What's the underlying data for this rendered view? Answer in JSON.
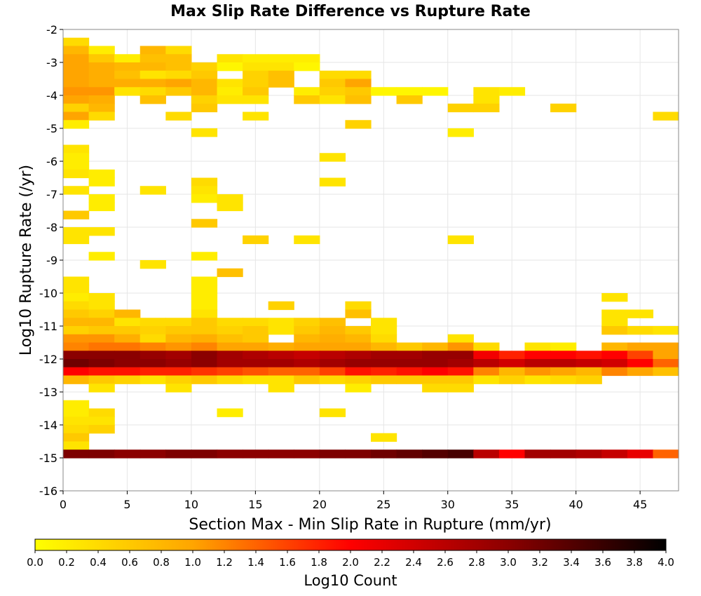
{
  "chart_data": {
    "type": "heatmap",
    "title": "Max Slip Rate Difference vs Rupture Rate",
    "xlabel": "Section Max - Min Slip Rate in Rupture (mm/yr)",
    "ylabel": "Log10 Rupture Rate (/yr)",
    "colorbar_label": "Log10 Count",
    "xlim": [
      0,
      48
    ],
    "ylim": [
      -16,
      -2
    ],
    "x_ticks": [
      0,
      5,
      10,
      15,
      20,
      25,
      30,
      35,
      40,
      45
    ],
    "y_ticks": [
      -2,
      -3,
      -4,
      -5,
      -6,
      -7,
      -8,
      -9,
      -10,
      -11,
      -12,
      -13,
      -14,
      -15,
      -16
    ],
    "colorbar_range": [
      0.0,
      4.0
    ],
    "colorbar_ticks": [
      "0.0",
      "0.2",
      "0.4",
      "0.6",
      "0.8",
      "1.0",
      "1.2",
      "1.4",
      "1.6",
      "1.8",
      "2.0",
      "2.2",
      "2.4",
      "2.6",
      "2.8",
      "3.0",
      "3.2",
      "3.4",
      "3.6",
      "3.8",
      "4.0"
    ],
    "colorscale": [
      "#ffff00",
      "#ffa500",
      "#ff0000",
      "#8b0000",
      "#000000"
    ],
    "cell_size": {
      "x": 2,
      "y": 0.25
    },
    "grid": true,
    "cells": [
      [
        0,
        -2.25,
        0.4
      ],
      [
        0,
        -2.5,
        0.8
      ],
      [
        2,
        -2.5,
        0.2
      ],
      [
        6,
        -2.5,
        0.8
      ],
      [
        8,
        -2.5,
        0.4
      ],
      [
        0,
        -2.75,
        1.0
      ],
      [
        2,
        -2.75,
        0.6
      ],
      [
        4,
        -2.75,
        0.2
      ],
      [
        6,
        -2.75,
        0.7
      ],
      [
        8,
        -2.75,
        0.7
      ],
      [
        12,
        -2.75,
        0.3
      ],
      [
        14,
        -2.75,
        0.2
      ],
      [
        16,
        -2.75,
        0.2
      ],
      [
        18,
        -2.75,
        0.2
      ],
      [
        0,
        -3.0,
        1.0
      ],
      [
        2,
        -3.0,
        0.9
      ],
      [
        4,
        -3.0,
        0.8
      ],
      [
        6,
        -3.0,
        0.8
      ],
      [
        8,
        -3.0,
        0.7
      ],
      [
        10,
        -3.0,
        0.5
      ],
      [
        12,
        -3.0,
        0.1
      ],
      [
        14,
        -3.0,
        0.3
      ],
      [
        16,
        -3.0,
        0.3
      ],
      [
        18,
        -3.0,
        0.1
      ],
      [
        0,
        -3.25,
        1.0
      ],
      [
        2,
        -3.25,
        0.9
      ],
      [
        4,
        -3.25,
        0.7
      ],
      [
        6,
        -3.25,
        0.3
      ],
      [
        8,
        -3.25,
        0.4
      ],
      [
        10,
        -3.25,
        0.6
      ],
      [
        14,
        -3.25,
        0.5
      ],
      [
        16,
        -3.25,
        0.7
      ],
      [
        20,
        -3.25,
        0.4
      ],
      [
        22,
        -3.25,
        0.4
      ],
      [
        0,
        -3.5,
        1.0
      ],
      [
        2,
        -3.5,
        0.9
      ],
      [
        4,
        -3.5,
        0.9
      ],
      [
        6,
        -3.5,
        0.9
      ],
      [
        8,
        -3.5,
        1.0
      ],
      [
        10,
        -3.5,
        0.8
      ],
      [
        12,
        -3.5,
        0.3
      ],
      [
        14,
        -3.5,
        0.5
      ],
      [
        16,
        -3.5,
        0.7
      ],
      [
        20,
        -3.5,
        0.6
      ],
      [
        22,
        -3.5,
        1.0
      ],
      [
        0,
        -3.75,
        1.1
      ],
      [
        2,
        -3.75,
        1.1
      ],
      [
        4,
        -3.75,
        0.3
      ],
      [
        6,
        -3.75,
        0.4
      ],
      [
        8,
        -3.75,
        0.6
      ],
      [
        10,
        -3.75,
        0.8
      ],
      [
        12,
        -3.75,
        0.2
      ],
      [
        14,
        -3.75,
        0.6
      ],
      [
        18,
        -3.75,
        0.2
      ],
      [
        20,
        -3.75,
        0.5
      ],
      [
        22,
        -3.75,
        0.6
      ],
      [
        24,
        -3.75,
        0.1
      ],
      [
        26,
        -3.75,
        0.1
      ],
      [
        28,
        -3.75,
        0.1
      ],
      [
        32,
        -3.75,
        0.3
      ],
      [
        34,
        -3.75,
        0.2
      ],
      [
        0,
        -4.0,
        1.0
      ],
      [
        2,
        -4.0,
        0.9
      ],
      [
        6,
        -4.0,
        0.7
      ],
      [
        10,
        -4.0,
        0.5
      ],
      [
        12,
        -4.0,
        0.3
      ],
      [
        14,
        -4.0,
        0.3
      ],
      [
        18,
        -4.0,
        0.6
      ],
      [
        20,
        -4.0,
        0.3
      ],
      [
        22,
        -4.0,
        0.7
      ],
      [
        26,
        -4.0,
        0.6
      ],
      [
        32,
        -4.0,
        0.3
      ],
      [
        0,
        -4.25,
        0.5
      ],
      [
        2,
        -4.25,
        0.8
      ],
      [
        10,
        -4.25,
        0.6
      ],
      [
        30,
        -4.25,
        0.5
      ],
      [
        32,
        -4.25,
        0.5
      ],
      [
        38,
        -4.25,
        0.5
      ],
      [
        0,
        -4.5,
        1.0
      ],
      [
        2,
        -4.5,
        0.4
      ],
      [
        8,
        -4.5,
        0.4
      ],
      [
        14,
        -4.5,
        0.3
      ],
      [
        46,
        -4.5,
        0.4
      ],
      [
        0,
        -4.75,
        0.2
      ],
      [
        22,
        -4.75,
        0.5
      ],
      [
        10,
        -5.0,
        0.3
      ],
      [
        30,
        -5.0,
        0.2
      ],
      [
        0,
        -5.5,
        0.3
      ],
      [
        0,
        -5.75,
        0.2
      ],
      [
        20,
        -5.75,
        0.3
      ],
      [
        0,
        -6.0,
        0.2
      ],
      [
        0,
        -6.25,
        0.3
      ],
      [
        2,
        -6.25,
        0.2
      ],
      [
        2,
        -6.5,
        0.2
      ],
      [
        10,
        -6.5,
        0.4
      ],
      [
        20,
        -6.5,
        0.3
      ],
      [
        0,
        -6.75,
        0.3
      ],
      [
        6,
        -6.75,
        0.3
      ],
      [
        10,
        -6.75,
        0.3
      ],
      [
        2,
        -7.0,
        0.2
      ],
      [
        10,
        -7.0,
        0.2
      ],
      [
        12,
        -7.0,
        0.3
      ],
      [
        2,
        -7.25,
        0.2
      ],
      [
        12,
        -7.25,
        0.3
      ],
      [
        0,
        -7.5,
        0.6
      ],
      [
        10,
        -7.75,
        0.6
      ],
      [
        0,
        -8.0,
        0.3
      ],
      [
        2,
        -8.0,
        0.3
      ],
      [
        0,
        -8.25,
        0.3
      ],
      [
        14,
        -8.25,
        0.5
      ],
      [
        18,
        -8.25,
        0.3
      ],
      [
        30,
        -8.25,
        0.3
      ],
      [
        2,
        -8.75,
        0.2
      ],
      [
        10,
        -8.75,
        0.2
      ],
      [
        6,
        -9.0,
        0.3
      ],
      [
        12,
        -9.25,
        0.7
      ],
      [
        0,
        -9.5,
        0.3
      ],
      [
        10,
        -9.5,
        0.2
      ],
      [
        0,
        -9.75,
        0.3
      ],
      [
        10,
        -9.75,
        0.2
      ],
      [
        0,
        -10.0,
        0.2
      ],
      [
        2,
        -10.0,
        0.3
      ],
      [
        10,
        -10.0,
        0.2
      ],
      [
        42,
        -10.0,
        0.3
      ],
      [
        0,
        -10.25,
        0.4
      ],
      [
        2,
        -10.25,
        0.3
      ],
      [
        10,
        -10.25,
        0.2
      ],
      [
        16,
        -10.25,
        0.5
      ],
      [
        22,
        -10.25,
        0.4
      ],
      [
        0,
        -10.5,
        0.6
      ],
      [
        2,
        -10.5,
        0.5
      ],
      [
        4,
        -10.5,
        0.8
      ],
      [
        10,
        -10.5,
        0.3
      ],
      [
        22,
        -10.5,
        0.7
      ],
      [
        42,
        -10.5,
        0.3
      ],
      [
        44,
        -10.5,
        0.3
      ],
      [
        0,
        -10.75,
        0.8
      ],
      [
        2,
        -10.75,
        0.8
      ],
      [
        4,
        -10.75,
        0.3
      ],
      [
        6,
        -10.75,
        0.4
      ],
      [
        8,
        -10.75,
        0.4
      ],
      [
        10,
        -10.75,
        0.6
      ],
      [
        12,
        -10.75,
        0.4
      ],
      [
        14,
        -10.75,
        0.4
      ],
      [
        16,
        -10.75,
        0.3
      ],
      [
        18,
        -10.75,
        0.5
      ],
      [
        20,
        -10.75,
        0.7
      ],
      [
        24,
        -10.75,
        0.3
      ],
      [
        42,
        -10.75,
        0.3
      ],
      [
        0,
        -11.0,
        0.5
      ],
      [
        2,
        -11.0,
        0.6
      ],
      [
        4,
        -11.0,
        0.6
      ],
      [
        6,
        -11.0,
        0.5
      ],
      [
        8,
        -11.0,
        0.6
      ],
      [
        10,
        -11.0,
        0.6
      ],
      [
        12,
        -11.0,
        0.5
      ],
      [
        14,
        -11.0,
        0.6
      ],
      [
        16,
        -11.0,
        0.3
      ],
      [
        18,
        -11.0,
        0.6
      ],
      [
        20,
        -11.0,
        0.8
      ],
      [
        22,
        -11.0,
        0.6
      ],
      [
        24,
        -11.0,
        0.3
      ],
      [
        42,
        -11.0,
        0.6
      ],
      [
        44,
        -11.0,
        0.4
      ],
      [
        46,
        -11.0,
        0.3
      ],
      [
        0,
        -11.25,
        1.1
      ],
      [
        2,
        -11.25,
        1.1
      ],
      [
        4,
        -11.25,
        0.9
      ],
      [
        6,
        -11.25,
        0.4
      ],
      [
        8,
        -11.25,
        0.8
      ],
      [
        10,
        -11.25,
        0.9
      ],
      [
        12,
        -11.25,
        0.7
      ],
      [
        14,
        -11.25,
        0.6
      ],
      [
        18,
        -11.25,
        0.8
      ],
      [
        20,
        -11.25,
        0.9
      ],
      [
        22,
        -11.25,
        0.8
      ],
      [
        24,
        -11.25,
        0.4
      ],
      [
        30,
        -11.25,
        0.3
      ],
      [
        0,
        -11.5,
        1.2
      ],
      [
        2,
        -11.5,
        1.3
      ],
      [
        4,
        -11.5,
        1.3
      ],
      [
        6,
        -11.5,
        1.2
      ],
      [
        8,
        -11.5,
        1.1
      ],
      [
        10,
        -11.5,
        1.2
      ],
      [
        12,
        -11.5,
        1.0
      ],
      [
        14,
        -11.5,
        1.0
      ],
      [
        16,
        -11.5,
        0.9
      ],
      [
        18,
        -11.5,
        1.0
      ],
      [
        20,
        -11.5,
        1.0
      ],
      [
        22,
        -11.5,
        1.0
      ],
      [
        24,
        -11.5,
        0.8
      ],
      [
        26,
        -11.5,
        0.6
      ],
      [
        28,
        -11.5,
        0.8
      ],
      [
        30,
        -11.5,
        1.1
      ],
      [
        32,
        -11.5,
        0.4
      ],
      [
        36,
        -11.5,
        0.3
      ],
      [
        38,
        -11.5,
        0.2
      ],
      [
        42,
        -11.5,
        0.8
      ],
      [
        44,
        -11.5,
        1.0
      ],
      [
        46,
        -11.5,
        1.0
      ],
      [
        0,
        -11.75,
        3.0
      ],
      [
        2,
        -11.75,
        3.0
      ],
      [
        4,
        -11.75,
        3.0
      ],
      [
        6,
        -11.75,
        2.9
      ],
      [
        8,
        -11.75,
        2.8
      ],
      [
        10,
        -11.75,
        3.0
      ],
      [
        12,
        -11.75,
        2.8
      ],
      [
        14,
        -11.75,
        2.7
      ],
      [
        16,
        -11.75,
        2.6
      ],
      [
        18,
        -11.75,
        2.5
      ],
      [
        20,
        -11.75,
        2.6
      ],
      [
        22,
        -11.75,
        2.7
      ],
      [
        24,
        -11.75,
        2.8
      ],
      [
        26,
        -11.75,
        2.8
      ],
      [
        28,
        -11.75,
        2.9
      ],
      [
        30,
        -11.75,
        2.9
      ],
      [
        32,
        -11.75,
        2.1
      ],
      [
        34,
        -11.75,
        1.8
      ],
      [
        36,
        -11.75,
        2.0
      ],
      [
        38,
        -11.75,
        2.0
      ],
      [
        40,
        -11.75,
        1.9
      ],
      [
        42,
        -11.75,
        2.0
      ],
      [
        44,
        -11.75,
        1.6
      ],
      [
        46,
        -11.75,
        1.0
      ],
      [
        0,
        -12.0,
        3.2
      ],
      [
        2,
        -12.0,
        3.1
      ],
      [
        4,
        -12.0,
        3.0
      ],
      [
        6,
        -12.0,
        3.0
      ],
      [
        8,
        -12.0,
        2.9
      ],
      [
        10,
        -12.0,
        3.0
      ],
      [
        12,
        -12.0,
        2.8
      ],
      [
        14,
        -12.0,
        2.8
      ],
      [
        16,
        -12.0,
        2.8
      ],
      [
        18,
        -12.0,
        2.7
      ],
      [
        20,
        -12.0,
        2.8
      ],
      [
        22,
        -12.0,
        2.9
      ],
      [
        24,
        -12.0,
        2.9
      ],
      [
        26,
        -12.0,
        2.9
      ],
      [
        28,
        -12.0,
        2.9
      ],
      [
        30,
        -12.0,
        2.8
      ],
      [
        32,
        -12.0,
        2.6
      ],
      [
        34,
        -12.0,
        2.4
      ],
      [
        36,
        -12.0,
        2.6
      ],
      [
        38,
        -12.0,
        2.6
      ],
      [
        40,
        -12.0,
        2.5
      ],
      [
        42,
        -12.0,
        2.4
      ],
      [
        44,
        -12.0,
        2.0
      ],
      [
        46,
        -12.0,
        1.4
      ],
      [
        0,
        -12.25,
        2.0
      ],
      [
        2,
        -12.25,
        1.9
      ],
      [
        4,
        -12.25,
        1.9
      ],
      [
        6,
        -12.25,
        1.8
      ],
      [
        8,
        -12.25,
        1.8
      ],
      [
        10,
        -12.25,
        1.7
      ],
      [
        12,
        -12.25,
        1.6
      ],
      [
        14,
        -12.25,
        1.5
      ],
      [
        16,
        -12.25,
        1.4
      ],
      [
        18,
        -12.25,
        1.4
      ],
      [
        20,
        -12.25,
        1.6
      ],
      [
        22,
        -12.25,
        1.9
      ],
      [
        24,
        -12.25,
        1.8
      ],
      [
        26,
        -12.25,
        1.9
      ],
      [
        28,
        -12.25,
        2.0
      ],
      [
        30,
        -12.25,
        1.9
      ],
      [
        32,
        -12.25,
        1.2
      ],
      [
        34,
        -12.25,
        0.8
      ],
      [
        36,
        -12.25,
        1.1
      ],
      [
        38,
        -12.25,
        1.0
      ],
      [
        40,
        -12.25,
        0.8
      ],
      [
        42,
        -12.25,
        1.2
      ],
      [
        44,
        -12.25,
        1.0
      ],
      [
        46,
        -12.25,
        0.7
      ],
      [
        0,
        -12.5,
        0.8
      ],
      [
        2,
        -12.5,
        0.6
      ],
      [
        4,
        -12.5,
        0.5
      ],
      [
        6,
        -12.5,
        0.3
      ],
      [
        8,
        -12.5,
        0.5
      ],
      [
        10,
        -12.5,
        0.6
      ],
      [
        12,
        -12.5,
        0.4
      ],
      [
        14,
        -12.5,
        0.3
      ],
      [
        16,
        -12.5,
        0.3
      ],
      [
        18,
        -12.5,
        0.6
      ],
      [
        20,
        -12.5,
        0.4
      ],
      [
        22,
        -12.5,
        0.5
      ],
      [
        24,
        -12.5,
        0.6
      ],
      [
        26,
        -12.5,
        0.6
      ],
      [
        28,
        -12.5,
        0.6
      ],
      [
        30,
        -12.5,
        0.6
      ],
      [
        32,
        -12.5,
        0.3
      ],
      [
        34,
        -12.5,
        0.5
      ],
      [
        36,
        -12.5,
        0.3
      ],
      [
        38,
        -12.5,
        0.4
      ],
      [
        40,
        -12.5,
        0.5
      ],
      [
        2,
        -12.75,
        0.3
      ],
      [
        8,
        -12.75,
        0.3
      ],
      [
        16,
        -12.75,
        0.3
      ],
      [
        22,
        -12.75,
        0.2
      ],
      [
        28,
        -12.75,
        0.4
      ],
      [
        30,
        -12.75,
        0.4
      ],
      [
        0,
        -13.25,
        0.2
      ],
      [
        0,
        -13.5,
        0.2
      ],
      [
        2,
        -13.5,
        0.4
      ],
      [
        12,
        -13.5,
        0.2
      ],
      [
        20,
        -13.5,
        0.3
      ],
      [
        0,
        -13.75,
        0.3
      ],
      [
        2,
        -13.75,
        0.3
      ],
      [
        0,
        -14.0,
        0.4
      ],
      [
        2,
        -14.0,
        0.5
      ],
      [
        0,
        -14.25,
        0.6
      ],
      [
        24,
        -14.25,
        0.3
      ],
      [
        0,
        -14.5,
        0.3
      ],
      [
        0,
        -14.75,
        3.1
      ],
      [
        2,
        -14.75,
        3.1
      ],
      [
        4,
        -14.75,
        3.0
      ],
      [
        6,
        -14.75,
        3.0
      ],
      [
        8,
        -14.75,
        3.1
      ],
      [
        10,
        -14.75,
        3.1
      ],
      [
        12,
        -14.75,
        3.0
      ],
      [
        14,
        -14.75,
        3.0
      ],
      [
        16,
        -14.75,
        3.0
      ],
      [
        18,
        -14.75,
        3.0
      ],
      [
        20,
        -14.75,
        3.1
      ],
      [
        22,
        -14.75,
        3.1
      ],
      [
        24,
        -14.75,
        3.2
      ],
      [
        26,
        -14.75,
        3.3
      ],
      [
        28,
        -14.75,
        3.4
      ],
      [
        30,
        -14.75,
        3.5
      ],
      [
        32,
        -14.75,
        2.6
      ],
      [
        34,
        -14.75,
        2.0
      ],
      [
        36,
        -14.75,
        2.8
      ],
      [
        38,
        -14.75,
        2.8
      ],
      [
        40,
        -14.75,
        2.7
      ],
      [
        42,
        -14.75,
        2.5
      ],
      [
        44,
        -14.75,
        2.2
      ],
      [
        46,
        -14.75,
        1.4
      ]
    ]
  }
}
